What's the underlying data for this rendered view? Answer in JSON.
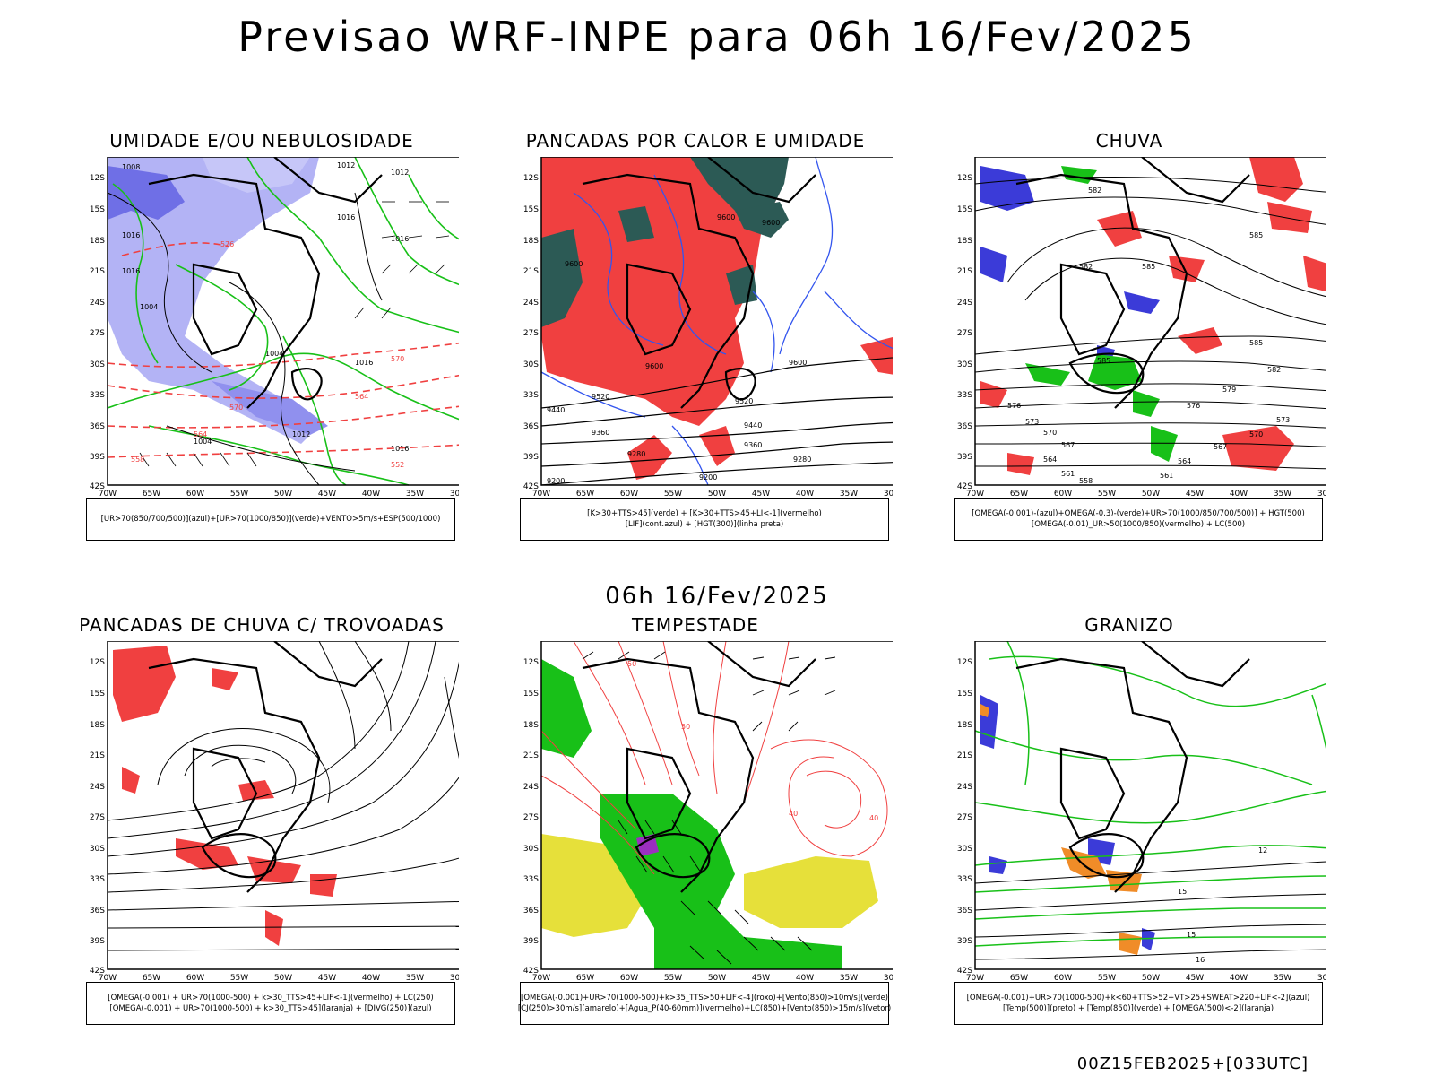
{
  "title": "Previsao WRF-INPE  para 06h 16/Fev/2025",
  "subtitle": "06h 16/Fev/2025",
  "footer": "00Z15FEB2025+[033UTC]",
  "axes": {
    "lat_labels": [
      "12S",
      "15S",
      "18S",
      "21S",
      "24S",
      "27S",
      "30S",
      "33S",
      "36S",
      "39S",
      "42S"
    ],
    "lon_labels": [
      "70W",
      "65W",
      "60W",
      "55W",
      "50W",
      "45W",
      "40W",
      "35W",
      "30W"
    ]
  },
  "panels": [
    {
      "title": "UMIDADE E/OU NEBULOSIDADE",
      "legend": [
        "[UR>70(850/700/500)](azul)+[UR>70(1000/850)](verde)+VENTO>5m/s+ESP(500/1000)"
      ],
      "contour_labels": [
        "1008",
        "1012",
        "1016",
        "1004",
        "576",
        "570",
        "564",
        "558",
        "552"
      ]
    },
    {
      "title": "PANCADAS POR CALOR E UMIDADE",
      "legend": [
        "[K>30+TTS>45](verde) + [K>30+TTS>45+LI<-1](vermelho)",
        "[LIF](cont.azul) + [HGT(300)](linha preta)"
      ],
      "contour_labels": [
        "9600",
        "9520",
        "9440",
        "9360",
        "9280",
        "9200"
      ]
    },
    {
      "title": "CHUVA",
      "legend": [
        "[OMEGA(-0.001)-(azul)+OMEGA(-0.3)-(verde)+UR>70(1000/850/700/500)] + HGT(500)",
        "[OMEGA(-0.01)_UR>50(1000/850)(vermelho) + LC(500)"
      ],
      "contour_labels": [
        "582",
        "585",
        "579",
        "576",
        "573",
        "570",
        "567",
        "564",
        "561",
        "558"
      ]
    },
    {
      "title": "PANCADAS DE CHUVA C/ TROVOADAS",
      "legend": [
        "[OMEGA(-0.001) + UR>70(1000-500) + k>30_TTS>45+LIF<-1](vermelho) + LC(250)",
        "[OMEGA(-0.001) + UR>70(1000-500) + k>30_TTS>45](laranja) + [DIVG(250)](azul)"
      ],
      "contour_labels": []
    },
    {
      "title": "TEMPESTADE",
      "legend": [
        "[OMEGA(-0.001)+UR>70(1000-500)+k>35_TTS>50+LIF<-4](roxo)+[Vento(850)>10m/s](verde)",
        "[CJ(250)>30m/s](amarelo)+[Agua_P(40-60mm)](vermelho)+LC(850)+[Vento(850)>15m/s](vetor)"
      ],
      "contour_labels": [
        "50",
        "40"
      ]
    },
    {
      "title": "GRANIZO",
      "legend": [
        "[OMEGA(-0.001)+UR>70(1000-500)+k<60+TTS>52+VT>25+SWEAT>220+LIF<-2](azul)",
        "[Temp(500)](preto) + [Temp(850)](verde) + [OMEGA(500)<-2](laranja)"
      ],
      "contour_labels": [
        "12",
        "15",
        "16"
      ]
    }
  ],
  "colors": {
    "blue_humidity": "#8b8bf0",
    "blue_dark": "#3b3bd8",
    "green": "#18c018",
    "red": "#f04040",
    "darkteal": "#2c5a55",
    "yellow": "#e6e03a",
    "orange": "#f08c28",
    "purple": "#9b2fc0"
  }
}
